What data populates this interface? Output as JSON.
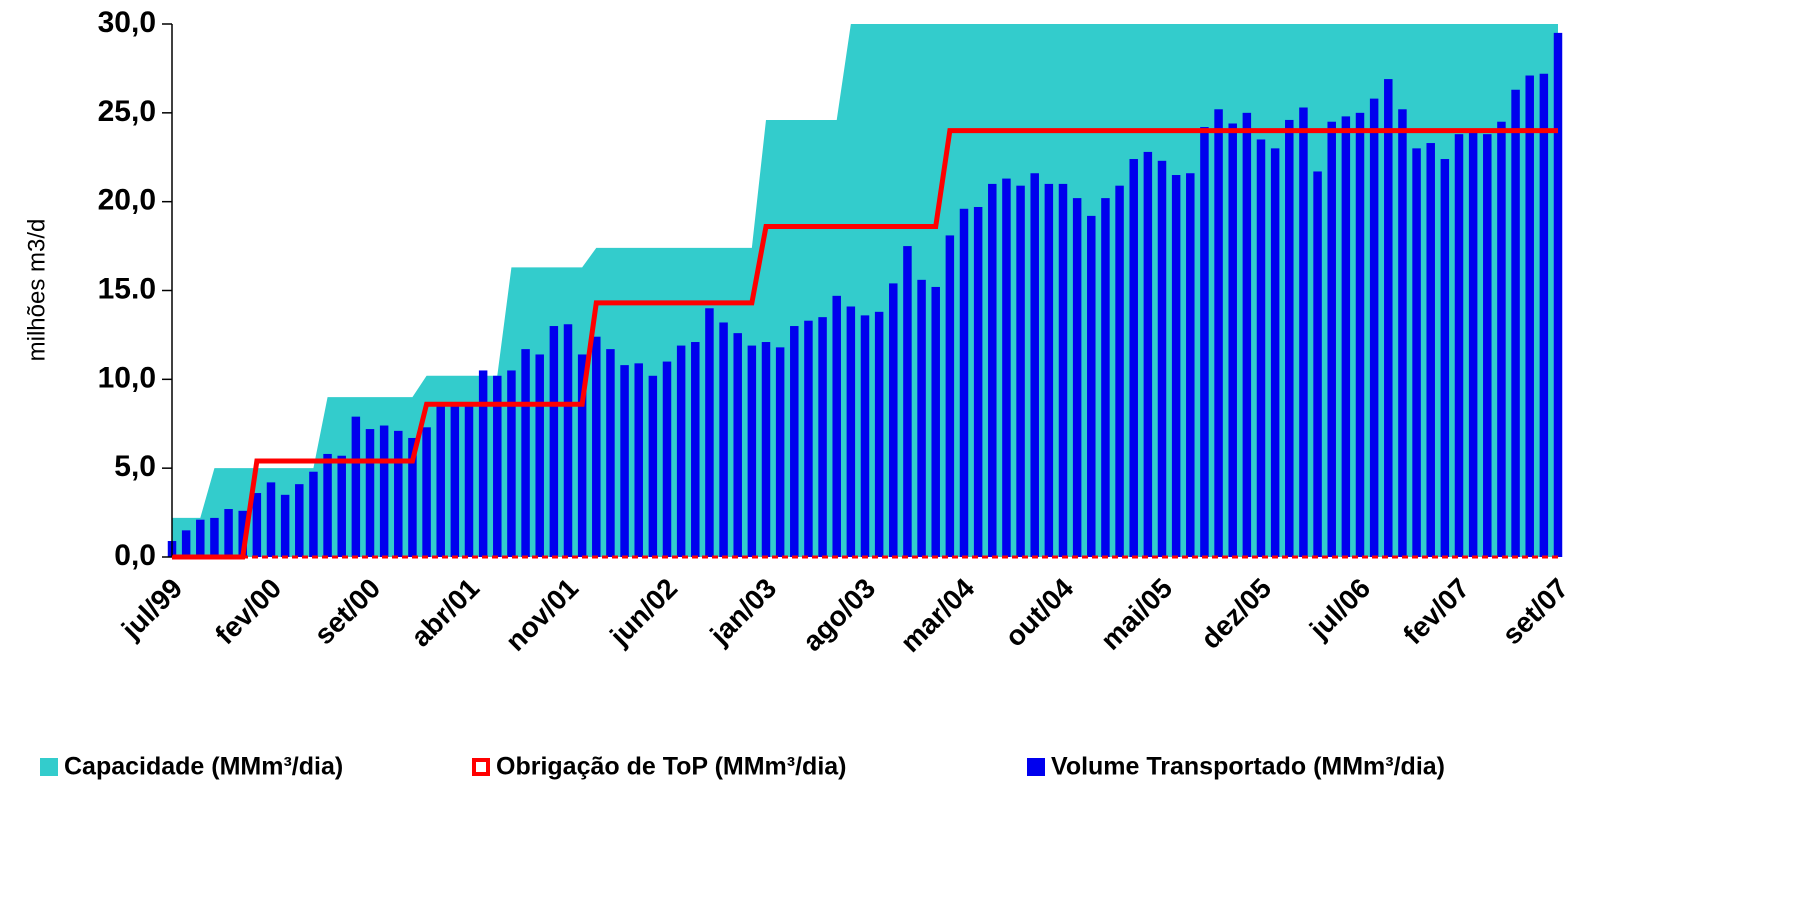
{
  "chart_data": {
    "type": "bar",
    "y_label": "milhões m3/d",
    "categories": [
      "jul/99",
      null,
      null,
      null,
      null,
      null,
      null,
      "fev/00",
      null,
      null,
      null,
      null,
      null,
      null,
      "set/00",
      null,
      null,
      null,
      null,
      null,
      null,
      "abr/01",
      null,
      null,
      null,
      null,
      null,
      null,
      "nov/01",
      null,
      null,
      null,
      null,
      null,
      null,
      "jun/02",
      null,
      null,
      null,
      null,
      null,
      null,
      "jan/03",
      null,
      null,
      null,
      null,
      null,
      null,
      "ago/03",
      null,
      null,
      null,
      null,
      null,
      null,
      "mar/04",
      null,
      null,
      null,
      null,
      null,
      null,
      "out/04",
      null,
      null,
      null,
      null,
      null,
      null,
      "mai/05",
      null,
      null,
      null,
      null,
      null,
      null,
      "dez/05",
      null,
      null,
      null,
      null,
      null,
      null,
      "jul/06",
      null,
      null,
      null,
      null,
      null,
      null,
      "fev/07",
      null,
      null,
      null,
      null,
      null,
      null,
      "set/07"
    ],
    "ylim": [
      0,
      30
    ],
    "yticks": [
      {
        "value": 0,
        "label": "0,0"
      },
      {
        "value": 5,
        "label": "5,0"
      },
      {
        "value": 10,
        "label": "10,0"
      },
      {
        "value": 15,
        "label": "15.0"
      },
      {
        "value": 20,
        "label": "20,0"
      },
      {
        "value": 25,
        "label": "25,0"
      },
      {
        "value": 30,
        "label": "30,0"
      }
    ],
    "grid": false,
    "series": [
      {
        "name": "Capacidade (MMm³/dia)",
        "type": "area",
        "color": "#33cccc",
        "values": [
          2.2,
          2.2,
          2.2,
          5.0,
          5.0,
          5.0,
          5.0,
          5.0,
          5.0,
          5.0,
          5.0,
          9.0,
          9.0,
          9.0,
          9.0,
          9.0,
          9.0,
          9.0,
          10.2,
          10.2,
          10.2,
          10.2,
          10.2,
          10.2,
          16.3,
          16.3,
          16.3,
          16.3,
          16.3,
          16.3,
          17.4,
          17.4,
          17.4,
          17.4,
          17.4,
          17.4,
          17.4,
          17.4,
          17.4,
          17.4,
          17.4,
          17.4,
          24.6,
          24.6,
          24.6,
          24.6,
          24.6,
          24.6,
          30,
          30,
          30,
          30,
          30,
          30,
          30,
          30,
          30,
          30,
          30,
          30,
          30,
          30,
          30,
          30,
          30,
          30,
          30,
          30,
          30,
          30,
          30,
          30,
          30,
          30,
          30,
          30,
          30,
          30,
          30,
          30,
          30,
          30,
          30,
          30,
          30,
          30,
          30,
          30,
          30,
          30,
          30,
          30,
          30,
          30,
          30,
          30,
          30,
          30,
          30
        ]
      },
      {
        "name": "Obrigação de ToP (MMm³/dia)",
        "type": "line",
        "color": "#ff0000",
        "values": [
          0,
          0,
          0,
          0,
          0,
          0,
          5.4,
          5.4,
          5.4,
          5.4,
          5.4,
          5.4,
          5.4,
          5.4,
          5.4,
          5.4,
          5.4,
          5.4,
          8.6,
          8.6,
          8.6,
          8.6,
          8.6,
          8.6,
          8.6,
          8.6,
          8.6,
          8.6,
          8.6,
          8.6,
          14.3,
          14.3,
          14.3,
          14.3,
          14.3,
          14.3,
          14.3,
          14.3,
          14.3,
          14.3,
          14.3,
          14.3,
          18.6,
          18.6,
          18.6,
          18.6,
          18.6,
          18.6,
          18.6,
          18.6,
          18.6,
          18.6,
          18.6,
          18.6,
          18.6,
          24,
          24,
          24,
          24,
          24,
          24,
          24,
          24,
          24,
          24,
          24,
          24,
          24,
          24,
          24,
          24,
          24,
          24,
          24,
          24,
          24,
          24,
          24,
          24,
          24,
          24,
          24,
          24,
          24,
          24,
          24,
          24,
          24,
          24,
          24,
          24,
          24,
          24,
          24,
          24,
          24,
          24,
          24,
          24
        ]
      },
      {
        "name": "Volume Transportado (MMm³/dia)",
        "type": "bar",
        "color": "#0000ee",
        "values": [
          0.9,
          1.5,
          2.1,
          2.2,
          2.7,
          2.6,
          3.6,
          4.2,
          3.5,
          4.1,
          4.8,
          5.8,
          5.7,
          7.9,
          7.2,
          7.4,
          7.1,
          6.7,
          7.3,
          8.7,
          8.5,
          8.6,
          10.5,
          10.2,
          10.5,
          11.7,
          11.4,
          13.0,
          13.1,
          11.4,
          12.4,
          11.7,
          10.8,
          10.9,
          10.2,
          11.0,
          11.9,
          12.1,
          14.0,
          13.2,
          12.6,
          11.9,
          12.1,
          11.8,
          13.0,
          13.3,
          13.5,
          14.7,
          14.1,
          13.6,
          13.8,
          15.4,
          17.5,
          15.6,
          15.2,
          18.1,
          19.6,
          19.7,
          21.0,
          21.3,
          20.9,
          21.6,
          21.0,
          21.0,
          20.2,
          19.2,
          20.2,
          20.9,
          22.4,
          22.8,
          22.3,
          21.5,
          21.6,
          24.2,
          25.2,
          24.4,
          25.0,
          23.5,
          23.0,
          24.6,
          25.3,
          21.7,
          24.5,
          24.8,
          25.0,
          25.8,
          26.9,
          25.2,
          23.0,
          23.3,
          22.4,
          23.8,
          24.0,
          23.8,
          24.5,
          26.3,
          27.1,
          27.2,
          29.5
        ]
      }
    ]
  }
}
